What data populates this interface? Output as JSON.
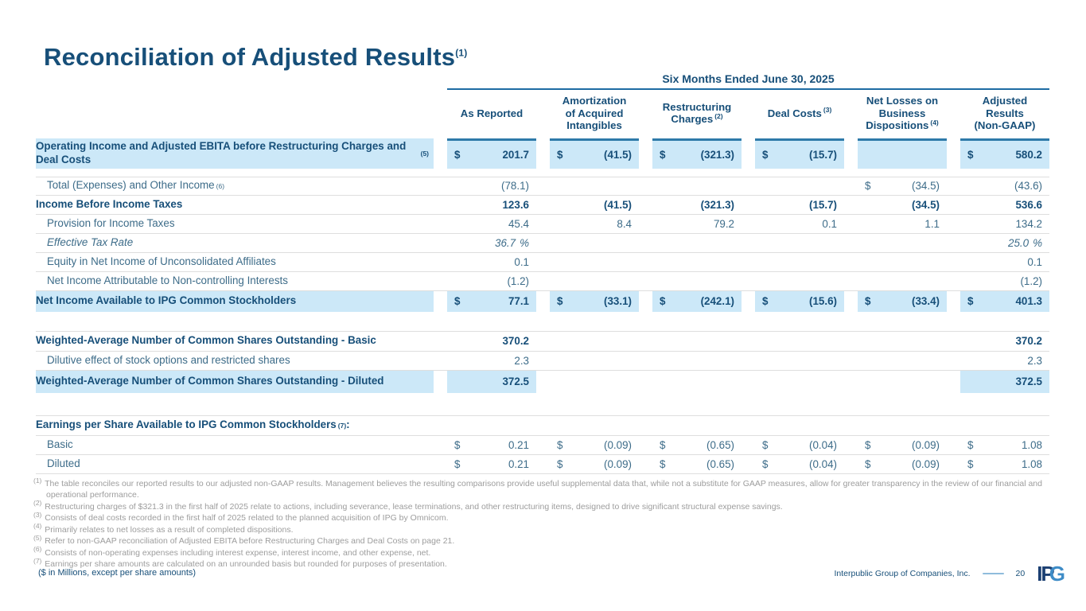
{
  "title": {
    "text": "Reconciliation of Adjusted Results",
    "sup": "(1)"
  },
  "colors": {
    "text_dark": "#174f79",
    "text_regular": "#3d6c89",
    "highlight": "#cce8f8",
    "cell_top_border": "#2e7aa9",
    "rule_blue": "#1e6ca3",
    "gridline": "#dedede",
    "footnote_gray": "#9d9d9d",
    "dash_blue": "#8fbcdc",
    "logo_dark": "#1b3f72",
    "logo_light": "#3e8cc7"
  },
  "table": {
    "period_header": "Six Months Ended June 30, 2025",
    "columns": [
      {
        "lines": [
          "As Reported"
        ]
      },
      {
        "lines": [
          "Amortization",
          "of Acquired",
          "Intangibles"
        ]
      },
      {
        "lines": [
          "Restructuring",
          "Charges"
        ],
        "sup": "(2)",
        "sup_line": 1
      },
      {
        "lines": [
          "Deal Costs"
        ],
        "sup": "(3)",
        "sup_line": 0
      },
      {
        "lines": [
          "Net Losses on",
          "Business",
          "Dispositions"
        ],
        "sup": "(4)",
        "sup_line": 2
      },
      {
        "lines": [
          "Adjusted",
          "Results",
          "(Non-GAAP)"
        ]
      }
    ],
    "rows": [
      {
        "label": "Operating Income and Adjusted EBITA before Restructuring Charges and Deal Costs",
        "sup": "(5)",
        "bold": true,
        "hl_label": true,
        "cells": [
          {
            "d": "$",
            "v": "201.7",
            "hl": true,
            "top": true
          },
          {
            "d": "$",
            "v": "(41.5)",
            "hl": true,
            "top": true
          },
          {
            "d": "$",
            "v": "(321.3)",
            "hl": true,
            "top": true
          },
          {
            "d": "$",
            "v": "(15.7)",
            "hl": true,
            "top": true
          },
          {
            "hl": true,
            "top": true
          },
          {
            "d": "$",
            "v": "580.2",
            "hl": true,
            "top": true
          }
        ]
      },
      {
        "label": "Total (Expenses) and Other Income",
        "sup": "(6)",
        "indent": true,
        "cells": [
          {
            "v": "(78.1)"
          },
          null,
          null,
          null,
          {
            "d": "$",
            "v": "(34.5)"
          },
          {
            "v": "(43.6)"
          }
        ]
      },
      {
        "label": "Income Before Income Taxes",
        "bold": true,
        "cells": [
          {
            "v": "123.6"
          },
          {
            "v": "(41.5)"
          },
          {
            "v": "(321.3)"
          },
          {
            "v": "(15.7)"
          },
          {
            "v": "(34.5)"
          },
          {
            "v": "536.6"
          }
        ]
      },
      {
        "label": "Provision for Income Taxes",
        "indent": true,
        "cells": [
          {
            "v": "45.4"
          },
          {
            "v": "8.4"
          },
          {
            "v": "79.2"
          },
          {
            "v": "0.1"
          },
          {
            "v": "1.1"
          },
          {
            "v": "134.2"
          }
        ]
      },
      {
        "label": "Effective Tax Rate",
        "indent": true,
        "italic": true,
        "cells": [
          {
            "v": "36.7",
            "u": "%"
          },
          null,
          null,
          null,
          null,
          {
            "v": "25.0",
            "u": "%"
          }
        ]
      },
      {
        "label": "Equity in Net Income of Unconsolidated Affiliates",
        "indent": true,
        "cells": [
          {
            "v": "0.1"
          },
          null,
          null,
          null,
          null,
          {
            "v": "0.1"
          }
        ]
      },
      {
        "label": "Net Income Attributable to Non-controlling Interests",
        "indent": true,
        "cells": [
          {
            "v": "(1.2)"
          },
          null,
          null,
          null,
          null,
          {
            "v": "(1.2)"
          }
        ]
      },
      {
        "label": "Net Income Available to IPG Common Stockholders",
        "bold": true,
        "hl_label": true,
        "cells": [
          {
            "d": "$",
            "v": "77.1",
            "hl": true
          },
          {
            "d": "$",
            "v": "(33.1)",
            "hl": true
          },
          {
            "d": "$",
            "v": "(242.1)",
            "hl": true
          },
          {
            "d": "$",
            "v": "(15.6)",
            "hl": true
          },
          {
            "d": "$",
            "v": "(33.4)",
            "hl": true
          },
          {
            "d": "$",
            "v": "401.3",
            "hl": true
          }
        ]
      },
      {
        "label": "Weighted-Average Number of Common Shares Outstanding - Basic",
        "bold": true,
        "cells": [
          {
            "v": "370.2"
          },
          null,
          null,
          null,
          null,
          {
            "v": "370.2"
          }
        ]
      },
      {
        "label": "Dilutive effect of stock options and restricted shares",
        "indent": true,
        "cells": [
          {
            "v": "2.3"
          },
          null,
          null,
          null,
          null,
          {
            "v": "2.3"
          }
        ]
      },
      {
        "label": "Weighted-Average Number of Common Shares Outstanding - Diluted",
        "bold": true,
        "hl_label": true,
        "cells": [
          {
            "v": "372.5",
            "hl": true
          },
          null,
          null,
          null,
          null,
          {
            "v": "372.5",
            "hl": true
          }
        ]
      },
      {
        "label": "Earnings per Share Available to IPG Common Stockholders",
        "sup": "(7)",
        "suffix": ":",
        "bold": true,
        "cells": [
          null,
          null,
          null,
          null,
          null,
          null
        ]
      },
      {
        "label": "Basic",
        "indent": true,
        "cells": [
          {
            "d": "$",
            "v": "0.21"
          },
          {
            "d": "$",
            "v": "(0.09)"
          },
          {
            "d": "$",
            "v": "(0.65)"
          },
          {
            "d": "$",
            "v": "(0.04)"
          },
          {
            "d": "$",
            "v": "(0.09)"
          },
          {
            "d": "$",
            "v": "1.08"
          }
        ]
      },
      {
        "label": "Diluted",
        "indent": true,
        "cells": [
          {
            "d": "$",
            "v": "0.21"
          },
          {
            "d": "$",
            "v": "(0.09)"
          },
          {
            "d": "$",
            "v": "(0.65)"
          },
          {
            "d": "$",
            "v": "(0.04)"
          },
          {
            "d": "$",
            "v": "(0.09)"
          },
          {
            "d": "$",
            "v": "1.08"
          }
        ]
      }
    ]
  },
  "footnotes": [
    {
      "sup": "(1)",
      "text": "The table reconciles our reported results to our adjusted non-GAAP results. Management believes the resulting comparisons provide useful supplemental data that, while not a substitute for GAAP measures, allow for greater transparency in the review of our financial and operational performance."
    },
    {
      "sup": "(2)",
      "text": "Restructuring charges of $321.3 in the first half of 2025 relate to actions, including severance, lease terminations, and other restructuring items, designed to drive significant structural expense savings."
    },
    {
      "sup": "(3)",
      "text": "Consists of deal costs recorded in the first half of 2025 related to the planned acquisition of IPG by Omnicom."
    },
    {
      "sup": "(4)",
      "text": "Primarily relates to net losses as a result of completed dispositions."
    },
    {
      "sup": "(5)",
      "text": "Refer to non-GAAP reconciliation of Adjusted EBITA before Restructuring Charges and Deal Costs on page 21."
    },
    {
      "sup": "(6)",
      "text": "Consists of non-operating expenses including interest expense, interest income, and other expense, net."
    },
    {
      "sup": "(7)",
      "text": "Earnings per share amounts are calculated on an unrounded basis but rounded for purposes of presentation."
    }
  ],
  "footer": {
    "left": "($ in Millions, except per share amounts)",
    "company": "Interpublic Group of Companies, Inc.",
    "page": "20",
    "logo_dark": "IP",
    "logo_light": "G"
  }
}
